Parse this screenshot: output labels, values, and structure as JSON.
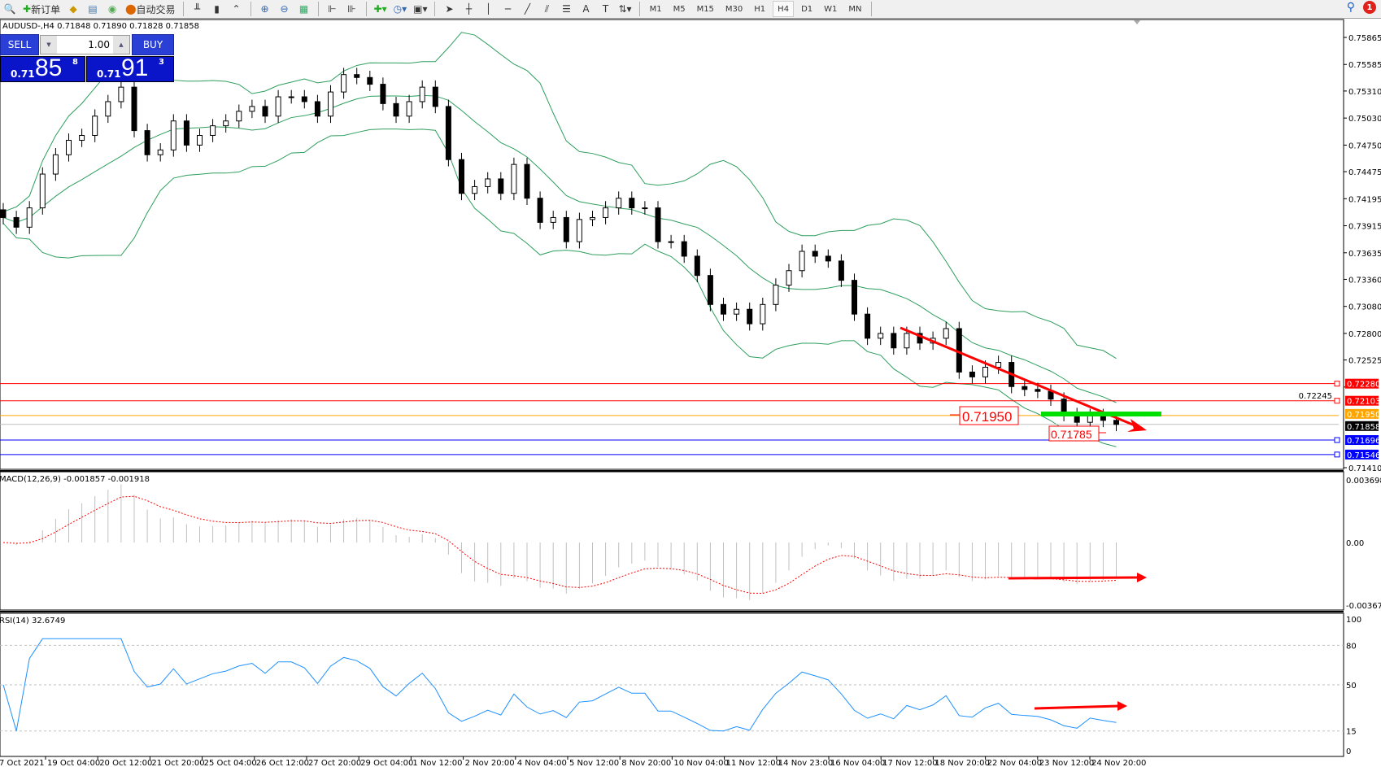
{
  "toolbar": {
    "new_order": "新订单",
    "auto_trading": "自动交易",
    "icons": [
      "zoom-icon",
      "new-order-icon",
      "history-icon",
      "market-watch-icon",
      "signals-icon",
      "auto-trading-icon",
      "bar-chart-icon",
      "candlestick-icon",
      "line-chart-icon",
      "zoom-in-icon",
      "zoom-out-icon",
      "tile-windows-icon",
      "chart-shift-icon",
      "autoscroll-icon",
      "indicators-icon",
      "periods-icon",
      "templates-icon",
      "cursor-icon",
      "crosshair-icon",
      "vertical-line-icon",
      "horizontal-line-icon",
      "trendline-icon",
      "channel-icon",
      "fibonacci-icon",
      "text-icon",
      "label-icon",
      "arrows-icon"
    ],
    "timeframes": [
      "M1",
      "M5",
      "M15",
      "M30",
      "H1",
      "H4",
      "D1",
      "W1",
      "MN"
    ],
    "active_timeframe": "H4",
    "notifications": "1"
  },
  "symbol_info": "AUDUSD-,H4  0.71848 0.71890 0.71828 0.71858",
  "trade_panel": {
    "sell_label": "SELL",
    "buy_label": "BUY",
    "lot": "1.00",
    "sell": {
      "small": "0.71",
      "big": "85",
      "exp": "8"
    },
    "buy": {
      "small": "0.71",
      "big": "91",
      "exp": "3"
    }
  },
  "chart_data": {
    "type": "candlestick",
    "symbol": "AUDUSD-",
    "timeframe": "H4",
    "ylim": [
      0.7141,
      0.75865
    ],
    "price_ticks": [
      "0.75865",
      "0.75585",
      "0.75310",
      "0.75030",
      "0.74750",
      "0.74475",
      "0.74195",
      "0.73915",
      "0.73635",
      "0.73360",
      "0.73080",
      "0.72800",
      "0.72525",
      "0.72245",
      "0.71410"
    ],
    "closes": [
      0.74,
      0.739,
      0.741,
      0.7445,
      0.7465,
      0.748,
      0.7485,
      0.7505,
      0.752,
      0.7535,
      0.749,
      0.7465,
      0.747,
      0.75,
      0.7475,
      0.7485,
      0.7495,
      0.75,
      0.751,
      0.7515,
      0.7505,
      0.7525,
      0.7525,
      0.752,
      0.7505,
      0.753,
      0.7548,
      0.7545,
      0.7538,
      0.7518,
      0.7505,
      0.752,
      0.7535,
      0.7515,
      0.746,
      0.7425,
      0.7432,
      0.744,
      0.7425,
      0.7455,
      0.742,
      0.7395,
      0.74,
      0.7375,
      0.7398,
      0.74,
      0.741,
      0.742,
      0.741,
      0.741,
      0.7375,
      0.7375,
      0.736,
      0.734,
      0.731,
      0.73,
      0.7305,
      0.729,
      0.731,
      0.733,
      0.7345,
      0.7365,
      0.736,
      0.7355,
      0.7335,
      0.73,
      0.7275,
      0.728,
      0.7265,
      0.728,
      0.727,
      0.7275,
      0.7285,
      0.724,
      0.7235,
      0.7245,
      0.725,
      0.7225,
      0.7222,
      0.722,
      0.7212,
      0.7196,
      0.7188,
      0.7195,
      0.719,
      0.71858
    ],
    "levels": [
      {
        "price": 0.7228,
        "label": "0.72280",
        "color": "#ff0000"
      },
      {
        "price": 0.72103,
        "label": "0.72103",
        "color": "#ff0000"
      },
      {
        "price": 0.7195,
        "label": "0.71950",
        "color": "#ffa500"
      },
      {
        "price": 0.71858,
        "label": "0.71858",
        "color": "#000000",
        "line": "#c0c0c0"
      },
      {
        "price": 0.71696,
        "label": "0.71696",
        "color": "#0000ff"
      },
      {
        "price": 0.71546,
        "label": "0.71546",
        "color": "#0000ff"
      }
    ],
    "annotations": {
      "price_label_1": "0.71950",
      "price_label_2": "0.71785"
    },
    "time_ticks": [
      "7 Oct 2021",
      "19 Oct 04:00",
      "20 Oct 12:00",
      "21 Oct 20:00",
      "25 Oct 04:00",
      "26 Oct 12:00",
      "27 Oct 20:00",
      "29 Oct 04:00",
      "1 Nov 12:00",
      "2 Nov 20:00",
      "4 Nov 04:00",
      "5 Nov 12:00",
      "8 Nov 20:00",
      "10 Nov 04:00",
      "11 Nov 12:00",
      "14 Nov 23:00",
      "16 Nov 04:00",
      "17 Nov 12:00",
      "18 Nov 20:00",
      "22 Nov 04:00",
      "23 Nov 12:00",
      "24 Nov 20:00"
    ],
    "indicators": {
      "bollinger_color": "#2e9e5e",
      "macd": {
        "label": "MACD(12,26,9) -0.001857 -0.001918",
        "ticks": [
          "0.003698",
          "0.00",
          "-0.003672"
        ],
        "range": [
          -0.003672,
          0.003698
        ],
        "signal_color": "#ff0000",
        "hist_color": "#c0c0c0"
      },
      "rsi": {
        "label": "RSI(14) 32.6749",
        "ticks": [
          "100",
          "80",
          "50",
          "15",
          "0"
        ],
        "levels": [
          80,
          50,
          15
        ],
        "color": "#1e90ff"
      }
    }
  }
}
